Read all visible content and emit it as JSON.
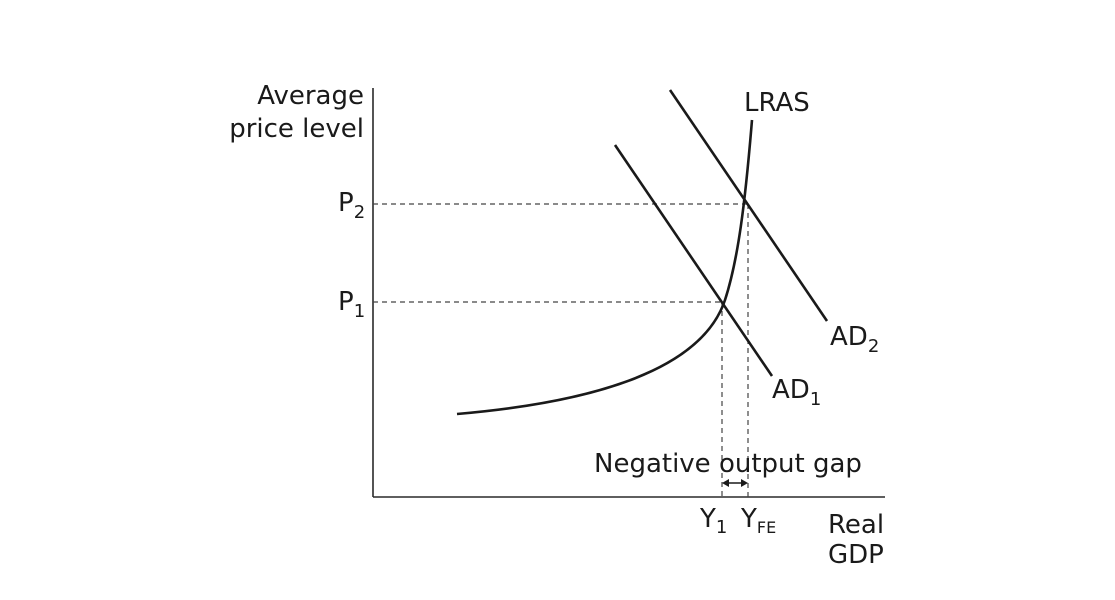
{
  "axes": {
    "y_label_line1": "Average",
    "y_label_line2": "price level",
    "x_label_line1": "Real",
    "x_label_line2": "GDP"
  },
  "price_levels": {
    "p2": {
      "base": "P",
      "sub": "2"
    },
    "p1": {
      "base": "P",
      "sub": "1"
    }
  },
  "output_levels": {
    "y1": {
      "base": "Y",
      "sub": "1"
    },
    "yfe": {
      "base": "Y",
      "sub": "FE"
    }
  },
  "curves": {
    "lras": "LRAS",
    "ad1": {
      "base": "AD",
      "sub": "1"
    },
    "ad2": {
      "base": "AD",
      "sub": "2"
    }
  },
  "annotation": "Negative output gap",
  "colors": {
    "ink": "#1a1a1a",
    "background": "#ffffff"
  }
}
